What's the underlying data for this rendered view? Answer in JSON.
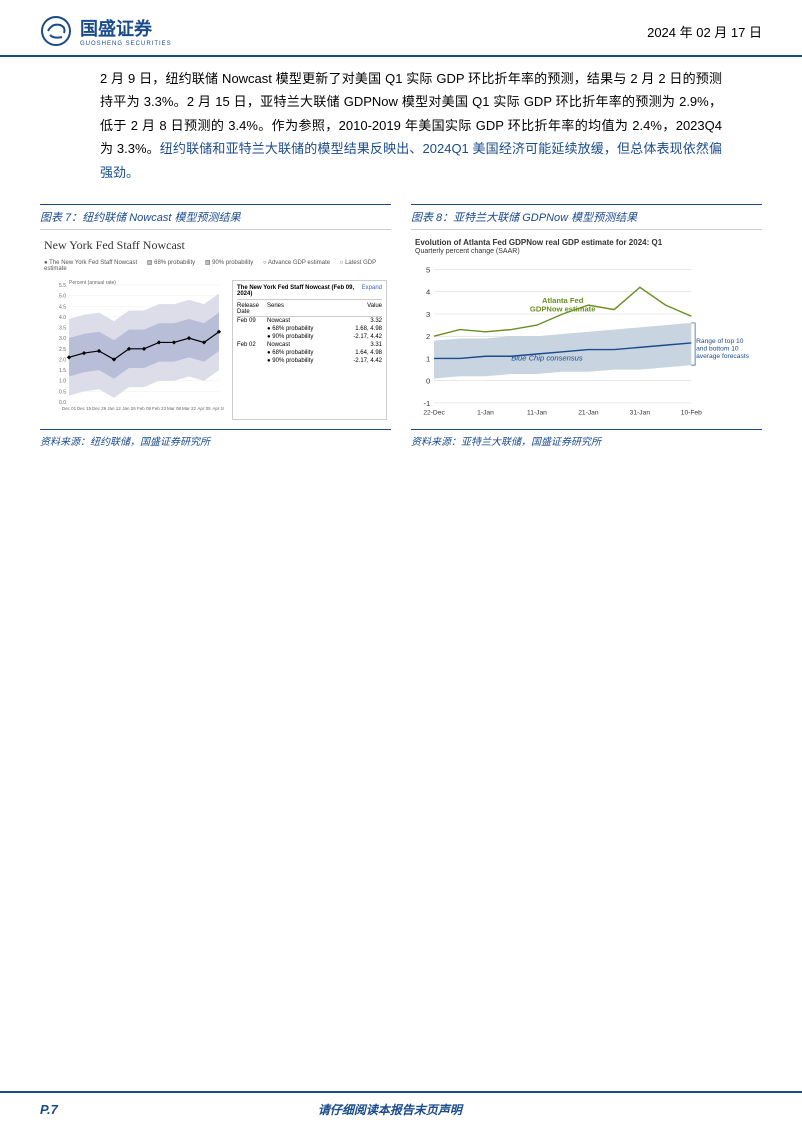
{
  "header": {
    "company_name": "国盛证券",
    "company_sub": "GUOSHENG SECURITIES",
    "date": "2024 年 02 月 17 日"
  },
  "body": {
    "paragraph": "2 月 9 日，纽约联储 Nowcast 模型更新了对美国 Q1 实际 GDP 环比折年率的预测，结果与 2 月 2 日的预测持平为 3.3%。2 月 15 日，亚特兰大联储 GDPNow 模型对美国 Q1 实际 GDP 环比折年率的预测为 2.9%，低于 2 月 8 日预测的 3.4%。作为参照，2010-2019 年美国实际 GDP 环比折年率的均值为 2.4%，2023Q4 为 3.3%。",
    "highlight": "纽约联储和亚特兰大联储的模型结果反映出、2024Q1 美国经济可能延续放缓，但总体表现依然偏强劲。"
  },
  "chart7": {
    "title": "图表 7：纽约联储 Nowcast 模型预测结果",
    "chart_heading": "New York Fed Staff Nowcast",
    "legend": {
      "l1": "● The New York Fed Staff Nowcast",
      "l2": "▨ 68% probability",
      "l3": "▨ 90% probability",
      "l4": "○ Advance GDP estimate",
      "l5": "○ Latest GDP estimate"
    },
    "ylabel": "Percent (annual rate)",
    "ylim": [
      0,
      5.5
    ],
    "ytick_step": 0.5,
    "x_labels": [
      "Dec 01",
      "Dec 15",
      "Dec 29",
      "Jan 12",
      "Jan 26",
      "Feb 09",
      "Feb 23",
      "Mar 08",
      "Mar 22",
      "Apr 05",
      "Apr 19"
    ],
    "line_data": [
      2.1,
      2.3,
      2.4,
      2.0,
      2.5,
      2.5,
      2.8,
      2.8,
      3.0,
      2.8,
      3.3
    ],
    "line_color": "#000000",
    "band68_color": "#b8bdd8",
    "band90_color": "#dcdde8",
    "table": {
      "title": "The New York Fed Staff Nowcast (Feb 09, 2024)",
      "expand": "Expand",
      "header_c1": "Release Date",
      "header_c2": "Series",
      "header_c3": "Value",
      "rows": [
        {
          "date": "Feb 09",
          "series": "Nowcast",
          "value": "3.32"
        },
        {
          "date": "",
          "series": "● 68% probability",
          "value": "1.68, 4.98"
        },
        {
          "date": "",
          "series": "● 90% probability",
          "value": "-2.17, 4.42"
        },
        {
          "date": "Feb 02",
          "series": "Nowcast",
          "value": "3.31"
        },
        {
          "date": "",
          "series": "● 68% probability",
          "value": "1.64, 4.98"
        },
        {
          "date": "",
          "series": "● 90% probability",
          "value": "-2.17, 4.42"
        }
      ]
    },
    "source": "资料来源：纽约联储，国盛证券研究所"
  },
  "chart8": {
    "title": "图表 8：亚特兰大联储 GDPNow 模型预测结果",
    "chart_heading": "Evolution of Atlanta Fed GDPNow real GDP estimate for 2024: Q1",
    "chart_sub": "Quarterly percent change (SAAR)",
    "ylim": [
      -1,
      5
    ],
    "ytick_step": 1,
    "x_labels": [
      "22-Dec",
      "1-Jan",
      "11-Jan",
      "21-Jan",
      "31-Jan",
      "10-Feb"
    ],
    "atlanta_label": "Atlanta Fed\nGDPNow estimate",
    "atlanta_color": "#6b8e23",
    "atlanta_data": [
      2.0,
      2.3,
      2.2,
      2.3,
      2.5,
      3.0,
      3.4,
      3.2,
      4.2,
      3.4,
      2.9
    ],
    "bluechip_label": "Blue Chip consensus",
    "bluechip_color": "#1a4b8c",
    "bluechip_mean": [
      1.0,
      1.0,
      1.1,
      1.1,
      1.2,
      1.3,
      1.4,
      1.4,
      1.5,
      1.6,
      1.7
    ],
    "band_color": "#c8d4e0",
    "band_low": [
      0.1,
      0.2,
      0.2,
      0.3,
      0.3,
      0.4,
      0.4,
      0.5,
      0.5,
      0.6,
      0.7
    ],
    "band_high": [
      1.8,
      1.9,
      1.9,
      2.0,
      2.0,
      2.1,
      2.2,
      2.3,
      2.4,
      2.5,
      2.6
    ],
    "range_label": "Range of top 10\nand bottom 10\naverage forecasts",
    "grid_color": "#d0d0d0",
    "source": "资料来源：亚特兰大联储，国盛证券研究所"
  },
  "footer": {
    "page": "P.7",
    "disclaimer": "请仔细阅读本报告末页声明"
  }
}
